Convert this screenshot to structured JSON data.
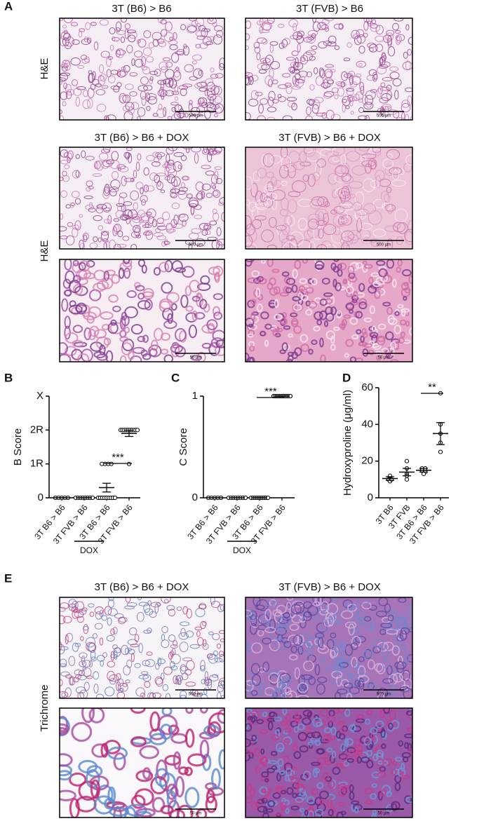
{
  "panel_a": {
    "label": "A",
    "titles": [
      "3T (B6) > B6",
      "3T (FVB) > B6",
      "3T (B6) > B6  + DOX",
      "3T (FVB) > B6 + DOX"
    ],
    "row_labels": [
      "H&E",
      "H&E"
    ],
    "scale_bars": [
      "500 μm",
      "500 μm",
      "500 μm",
      "500 μm",
      "50 μm",
      "50 μm"
    ]
  },
  "chart_data": [
    {
      "type": "dot",
      "panel": "B",
      "ylabel": "B Score",
      "categories": [
        "3T B6 > B6",
        "3T FVB > B6",
        "3T B6 > B6",
        "3T FVB > B6"
      ],
      "groups": [
        [
          0,
          0,
          0,
          0,
          0
        ],
        [
          0,
          0,
          0,
          0,
          0,
          0,
          0,
          0
        ],
        [
          0,
          0,
          0,
          0,
          0,
          0,
          0,
          0,
          0,
          1,
          1,
          1,
          1
        ],
        [
          2,
          2,
          2,
          2,
          2,
          2,
          2,
          2,
          2,
          2,
          1
        ]
      ],
      "mean": [
        0,
        0,
        0.3,
        1.9
      ],
      "sem": [
        0,
        0,
        0.13,
        0.09
      ],
      "ylim": [
        0,
        3
      ],
      "yticks": [
        0,
        {
          "value": 1,
          "label": "1R"
        },
        {
          "value": 2,
          "label": "2R"
        },
        {
          "value": 3,
          "label": "X"
        }
      ],
      "significance": "***",
      "bracket_label": "DOX"
    },
    {
      "type": "dot",
      "panel": "C",
      "ylabel": "C Score",
      "categories": [
        "3T B6 > B6",
        "3T FVB > B6",
        "3T B6 > B6",
        "3T FVB > B6"
      ],
      "groups": [
        [
          0,
          0,
          0,
          0,
          0
        ],
        [
          0,
          0,
          0,
          0,
          0,
          0,
          0,
          0
        ],
        [
          0,
          0,
          0,
          0,
          0,
          0,
          0,
          0,
          0,
          0
        ],
        [
          1,
          1,
          1,
          1,
          1,
          1,
          1,
          1,
          1,
          1,
          1,
          1
        ]
      ],
      "mean": [
        0,
        0,
        0,
        1
      ],
      "sem": [
        0,
        0,
        0,
        0
      ],
      "ylim": [
        0,
        1
      ],
      "yticks": [
        0,
        1
      ],
      "significance": "***",
      "bracket_label": "DOX"
    },
    {
      "type": "dot",
      "panel": "D",
      "ylabel": "Hydroxyproline (μg/ml)",
      "categories": [
        "3T B6",
        "3T FVB",
        "3T B6 > B6",
        "3T FVB > B6"
      ],
      "groups": [
        [
          11,
          10,
          9,
          12,
          10
        ],
        [
          20,
          16,
          13,
          10,
          12
        ],
        [
          16,
          15,
          14,
          13,
          16
        ],
        [
          57,
          40,
          35,
          30,
          25
        ]
      ],
      "mean": [
        10.5,
        14,
        15,
        35
      ],
      "sem": [
        1,
        2,
        1,
        6
      ],
      "ylim": [
        0,
        60
      ],
      "yticks": [
        0,
        20,
        40,
        60
      ],
      "significance": "**"
    }
  ],
  "panel_e": {
    "label": "E",
    "titles": [
      "3T (B6) > B6 + DOX",
      "3T (FVB) > B6 + DOX"
    ],
    "row_label": "Trichrome",
    "scale_bars": [
      "500 μm",
      "500 μm",
      "50 μm",
      "50 μm"
    ]
  }
}
